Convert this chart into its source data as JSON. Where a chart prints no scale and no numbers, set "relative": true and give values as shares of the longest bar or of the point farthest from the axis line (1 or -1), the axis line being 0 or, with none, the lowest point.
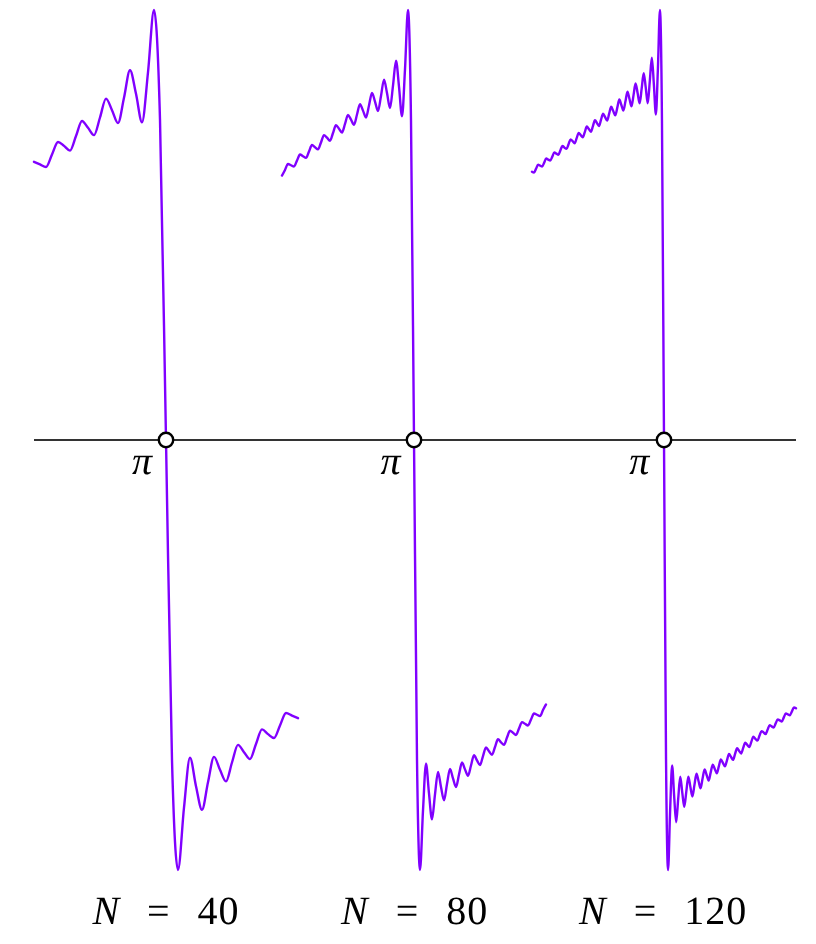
{
  "chart_data": [
    {
      "type": "line",
      "relative": true,
      "xlabel": "N = 40",
      "annotations": [
        "π"
      ],
      "categories": [
        null,
        null,
        null,
        null,
        null,
        null,
        null,
        null,
        null,
        null,
        null,
        null,
        null,
        null,
        null,
        null,
        null,
        null,
        null,
        null,
        null,
        null,
        null,
        null,
        null,
        null,
        null,
        null,
        null,
        null,
        null,
        null,
        null,
        null,
        null,
        null,
        null,
        null,
        null,
        null,
        null,
        null,
        null,
        null,
        null
      ],
      "series": [
        {
          "color": "#8000ff",
          "marker": "none",
          "values": [
            0.647,
            0.641,
            0.635,
            0.664,
            0.693,
            0.684,
            0.673,
            0.707,
            0.742,
            0.726,
            0.709,
            0.75,
            0.794,
            0.767,
            0.737,
            0.796,
            0.86,
            0.805,
            0.739,
            0.855,
            1,
            0.745,
            0,
            -0.745,
            -1,
            -0.855,
            -0.739,
            -0.805,
            -0.86,
            -0.796,
            -0.737,
            -0.767,
            -0.794,
            -0.75,
            -0.709,
            -0.726,
            -0.742,
            -0.707,
            -0.673,
            -0.684,
            -0.693,
            -0.664,
            -0.635,
            -0.641,
            -0.647
          ]
        }
      ]
    },
    {
      "type": "line",
      "relative": true,
      "xlabel": "N = 80",
      "annotations": [
        "π"
      ],
      "categories": [
        null,
        null,
        null,
        null,
        null,
        null,
        null,
        null,
        null,
        null,
        null,
        null,
        null,
        null,
        null,
        null,
        null,
        null,
        null,
        null,
        null,
        null,
        null,
        null,
        null,
        null,
        null,
        null,
        null,
        null,
        null,
        null,
        null,
        null,
        null,
        null,
        null,
        null,
        null,
        null,
        null,
        null,
        null,
        null,
        null,
        null,
        null,
        null,
        null,
        null,
        null,
        null,
        null,
        null,
        null,
        null,
        null,
        null,
        null,
        null,
        null,
        null,
        null,
        null,
        null,
        null,
        null,
        null,
        null,
        null,
        null,
        null,
        null,
        null,
        null,
        null,
        null,
        null,
        null,
        null,
        null,
        null,
        null,
        null,
        null,
        null,
        null,
        null,
        null
      ],
      "series": [
        {
          "color": "#8000ff",
          "marker": "none",
          "values": [
            0.615,
            0.628,
            0.642,
            0.639,
            0.636,
            0.65,
            0.664,
            0.66,
            0.656,
            0.671,
            0.686,
            0.681,
            0.676,
            0.692,
            0.709,
            0.703,
            0.696,
            0.714,
            0.732,
            0.724,
            0.715,
            0.735,
            0.756,
            0.745,
            0.733,
            0.757,
            0.781,
            0.766,
            0.75,
            0.778,
            0.807,
            0.787,
            0.765,
            0.8,
            0.838,
            0.807,
            0.772,
            0.824,
            0.882,
            0.822,
            0.753,
            0.862,
            1,
            0.743,
            0,
            -0.743,
            -1,
            -0.862,
            -0.753,
            -0.822,
            -0.882,
            -0.824,
            -0.772,
            -0.807,
            -0.838,
            -0.8,
            -0.765,
            -0.787,
            -0.807,
            -0.778,
            -0.75,
            -0.766,
            -0.781,
            -0.757,
            -0.733,
            -0.745,
            -0.756,
            -0.735,
            -0.715,
            -0.724,
            -0.732,
            -0.714,
            -0.696,
            -0.703,
            -0.709,
            -0.692,
            -0.676,
            -0.681,
            -0.686,
            -0.671,
            -0.656,
            -0.66,
            -0.664,
            -0.65,
            -0.636,
            -0.639,
            -0.642,
            -0.628,
            -0.615
          ]
        }
      ]
    },
    {
      "type": "line",
      "relative": true,
      "xlabel": "N = 120",
      "annotations": [
        "π"
      ],
      "categories": [
        null,
        null,
        null,
        null,
        null,
        null,
        null,
        null,
        null,
        null,
        null,
        null,
        null,
        null,
        null,
        null,
        null,
        null,
        null,
        null,
        null,
        null,
        null,
        null,
        null,
        null,
        null,
        null,
        null,
        null,
        null,
        null,
        null,
        null,
        null,
        null,
        null,
        null,
        null,
        null,
        null,
        null,
        null,
        null,
        null,
        null,
        null,
        null,
        null,
        null,
        null,
        null,
        null,
        null,
        null,
        null,
        null,
        null,
        null,
        null,
        null,
        null,
        null,
        null,
        null,
        null,
        null,
        null,
        null,
        null,
        null,
        null,
        null,
        null,
        null,
        null,
        null,
        null,
        null,
        null,
        null,
        null,
        null,
        null,
        null,
        null,
        null,
        null,
        null,
        null,
        null,
        null,
        null,
        null,
        null,
        null,
        null,
        null,
        null,
        null,
        null,
        null,
        null,
        null,
        null,
        null,
        null,
        null,
        null,
        null,
        null,
        null,
        null,
        null,
        null,
        null,
        null,
        null,
        null,
        null,
        null,
        null,
        null,
        null,
        null,
        null,
        null,
        null,
        null,
        null,
        null
      ],
      "series": [
        {
          "color": "#8000ff",
          "marker": "none",
          "values": [
            0.624,
            0.622,
            0.631,
            0.64,
            0.638,
            0.636,
            0.645,
            0.655,
            0.652,
            0.65,
            0.659,
            0.669,
            0.666,
            0.663,
            0.674,
            0.684,
            0.68,
            0.677,
            0.688,
            0.699,
            0.695,
            0.69,
            0.702,
            0.714,
            0.709,
            0.704,
            0.716,
            0.729,
            0.723,
            0.717,
            0.73,
            0.744,
            0.737,
            0.73,
            0.745,
            0.759,
            0.751,
            0.743,
            0.759,
            0.775,
            0.765,
            0.755,
            0.773,
            0.792,
            0.779,
            0.766,
            0.787,
            0.81,
            0.793,
            0.776,
            0.802,
            0.829,
            0.807,
            0.783,
            0.817,
            0.853,
            0.82,
            0.783,
            0.834,
            0.889,
            0.828,
            0.757,
            0.864,
            1,
            0.742,
            0,
            -0.742,
            -1,
            -0.864,
            -0.757,
            -0.828,
            -0.889,
            -0.834,
            -0.783,
            -0.82,
            -0.853,
            -0.817,
            -0.783,
            -0.807,
            -0.829,
            -0.802,
            -0.776,
            -0.793,
            -0.81,
            -0.787,
            -0.766,
            -0.779,
            -0.792,
            -0.773,
            -0.755,
            -0.765,
            -0.775,
            -0.759,
            -0.743,
            -0.751,
            -0.759,
            -0.745,
            -0.73,
            -0.737,
            -0.744,
            -0.73,
            -0.717,
            -0.723,
            -0.729,
            -0.716,
            -0.704,
            -0.709,
            -0.714,
            -0.702,
            -0.69,
            -0.695,
            -0.699,
            -0.688,
            -0.677,
            -0.68,
            -0.684,
            -0.674,
            -0.663,
            -0.666,
            -0.669,
            -0.659,
            -0.65,
            -0.652,
            -0.655,
            -0.645,
            -0.636,
            -0.638,
            -0.64,
            -0.631,
            -0.622,
            -0.624
          ]
        }
      ]
    }
  ]
}
